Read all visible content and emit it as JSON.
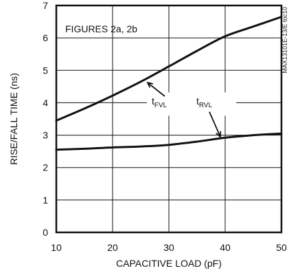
{
  "chart_data": {
    "type": "line",
    "title": "",
    "xlabel": "CAPACITIVE LOAD (pF)",
    "ylabel": "RISE/FALL TIME (ns)",
    "xlim": [
      10,
      50
    ],
    "ylim": [
      0,
      7
    ],
    "x_ticks": [
      "10",
      "20",
      "30",
      "40",
      "50"
    ],
    "y_ticks": [
      "0",
      "1",
      "2",
      "3",
      "4",
      "5",
      "6",
      "7"
    ],
    "grid": true,
    "annotation": "FIGURES 2a, 2b",
    "corner_label": "MAX13101E-13/E toc10",
    "series": [
      {
        "name": "tFVL",
        "label_main": "t",
        "label_sub": "FVL",
        "x": [
          10,
          15,
          20,
          25,
          30,
          35,
          40,
          45,
          50
        ],
        "values": [
          3.45,
          3.82,
          4.22,
          4.65,
          5.12,
          5.6,
          6.05,
          6.35,
          6.65
        ]
      },
      {
        "name": "tRVL",
        "label_main": "t",
        "label_sub": "RVL",
        "x": [
          10,
          15,
          20,
          25,
          30,
          35,
          40,
          45,
          50
        ],
        "values": [
          2.55,
          2.58,
          2.62,
          2.65,
          2.7,
          2.8,
          2.92,
          3.0,
          3.05
        ]
      }
    ]
  }
}
